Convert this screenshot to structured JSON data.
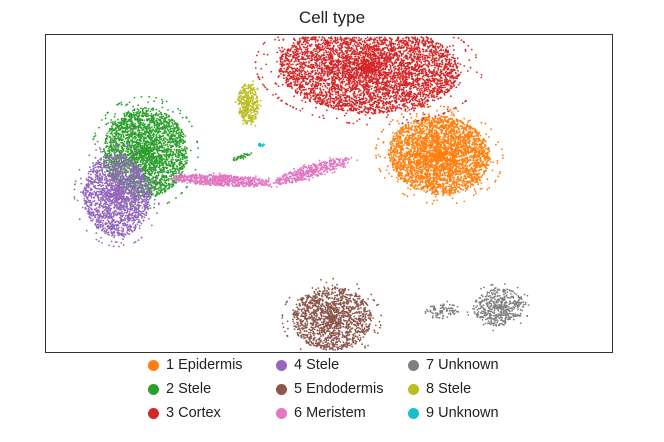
{
  "chart_data": {
    "type": "scatter",
    "title": "Cell type",
    "xlabel": "",
    "ylabel": "",
    "axes_ticks": false,
    "legend_position": "bottom",
    "series": [
      {
        "id": 1,
        "label": "1 Epidermis",
        "color": "#ff7f0e",
        "clusters": [
          {
            "cx": 0.695,
            "cy": 0.355,
            "rx": 0.09,
            "ry": 0.21,
            "n": 3400,
            "rot": -0.1
          }
        ]
      },
      {
        "id": 2,
        "label": "2 Stele",
        "color": "#2ca02c",
        "clusters": [
          {
            "cx": 0.175,
            "cy": 0.37,
            "rx": 0.075,
            "ry": 0.24,
            "n": 2800,
            "rot": 0.05
          },
          {
            "cx": 0.345,
            "cy": 0.345,
            "rx": 0.02,
            "ry": 0.015,
            "n": 40,
            "rot": 0.4
          }
        ]
      },
      {
        "id": 3,
        "label": "3 Cortex",
        "color": "#d62728",
        "clusters": [
          {
            "cx": 0.57,
            "cy": 0.82,
            "rx": 0.16,
            "ry": 0.24,
            "n": 5200,
            "rot": -0.05
          }
        ]
      },
      {
        "id": 4,
        "label": "4 Stele",
        "color": "#9467bd",
        "clusters": [
          {
            "cx": 0.125,
            "cy": 0.14,
            "rx": 0.06,
            "ry": 0.22,
            "n": 1900,
            "rot": 0.1
          }
        ]
      },
      {
        "id": 5,
        "label": "5 Endodermis",
        "color": "#8c564b",
        "clusters": [
          {
            "cx": 0.505,
            "cy": -0.52,
            "rx": 0.07,
            "ry": 0.17,
            "n": 1500,
            "rot": 0.0
          }
        ]
      },
      {
        "id": 6,
        "label": "6 Meristem",
        "color": "#e377c2",
        "clusters": [
          {
            "cx": 0.31,
            "cy": 0.22,
            "rx": 0.09,
            "ry": 0.03,
            "n": 700,
            "rot": -0.05
          },
          {
            "cx": 0.47,
            "cy": 0.27,
            "rx": 0.07,
            "ry": 0.035,
            "n": 450,
            "rot": 0.3
          }
        ]
      },
      {
        "id": 7,
        "label": "7 Unknown",
        "color": "#7f7f7f",
        "clusters": [
          {
            "cx": 0.8,
            "cy": -0.46,
            "rx": 0.045,
            "ry": 0.1,
            "n": 500,
            "rot": 0.1
          },
          {
            "cx": 0.7,
            "cy": -0.48,
            "rx": 0.03,
            "ry": 0.04,
            "n": 90,
            "rot": 0.1
          }
        ]
      },
      {
        "id": 8,
        "label": "8 Stele",
        "color": "#bcbd22",
        "clusters": [
          {
            "cx": 0.357,
            "cy": 0.63,
            "rx": 0.018,
            "ry": 0.11,
            "n": 380,
            "rot": 0.05
          }
        ]
      },
      {
        "id": 9,
        "label": "9 Unknown",
        "color": "#17becf",
        "clusters": [
          {
            "cx": 0.38,
            "cy": 0.41,
            "rx": 0.006,
            "ry": 0.012,
            "n": 14,
            "rot": 0.0
          }
        ]
      }
    ]
  }
}
